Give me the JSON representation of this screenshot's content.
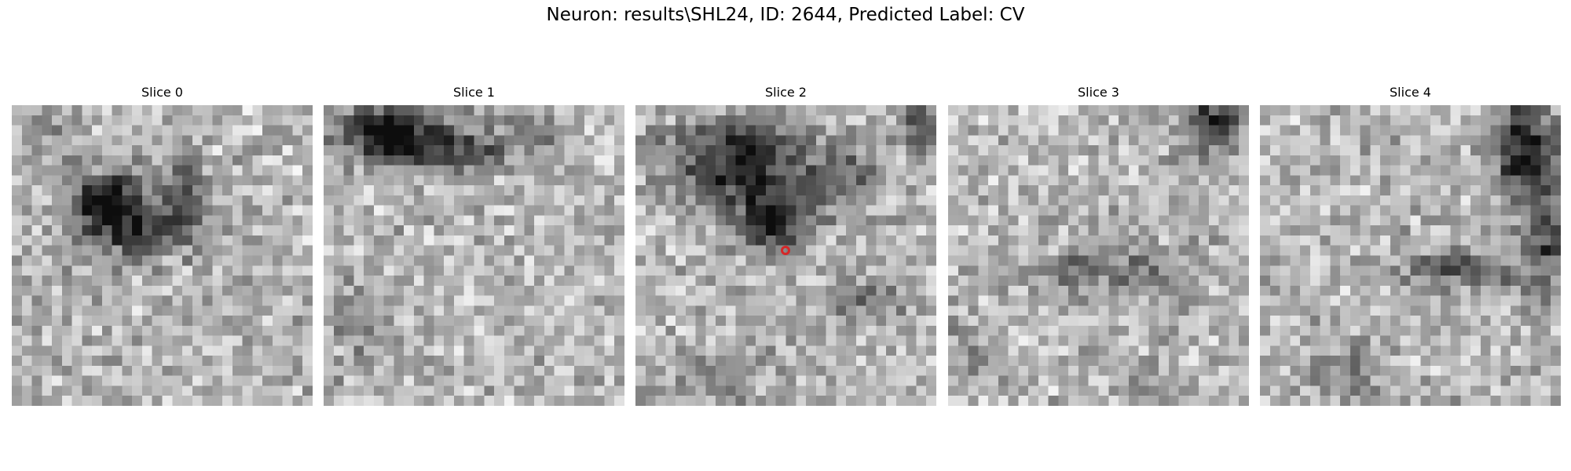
{
  "figure": {
    "title": "Neuron: results\\SHL24, ID: 2644, Predicted Label: CV"
  },
  "panels": [
    {
      "title": "Slice 0"
    },
    {
      "title": "Slice 1"
    },
    {
      "title": "Slice 2"
    },
    {
      "title": "Slice 3"
    },
    {
      "title": "Slice 4"
    }
  ],
  "marker": {
    "panel_index": 2,
    "color": "#d62728"
  }
}
